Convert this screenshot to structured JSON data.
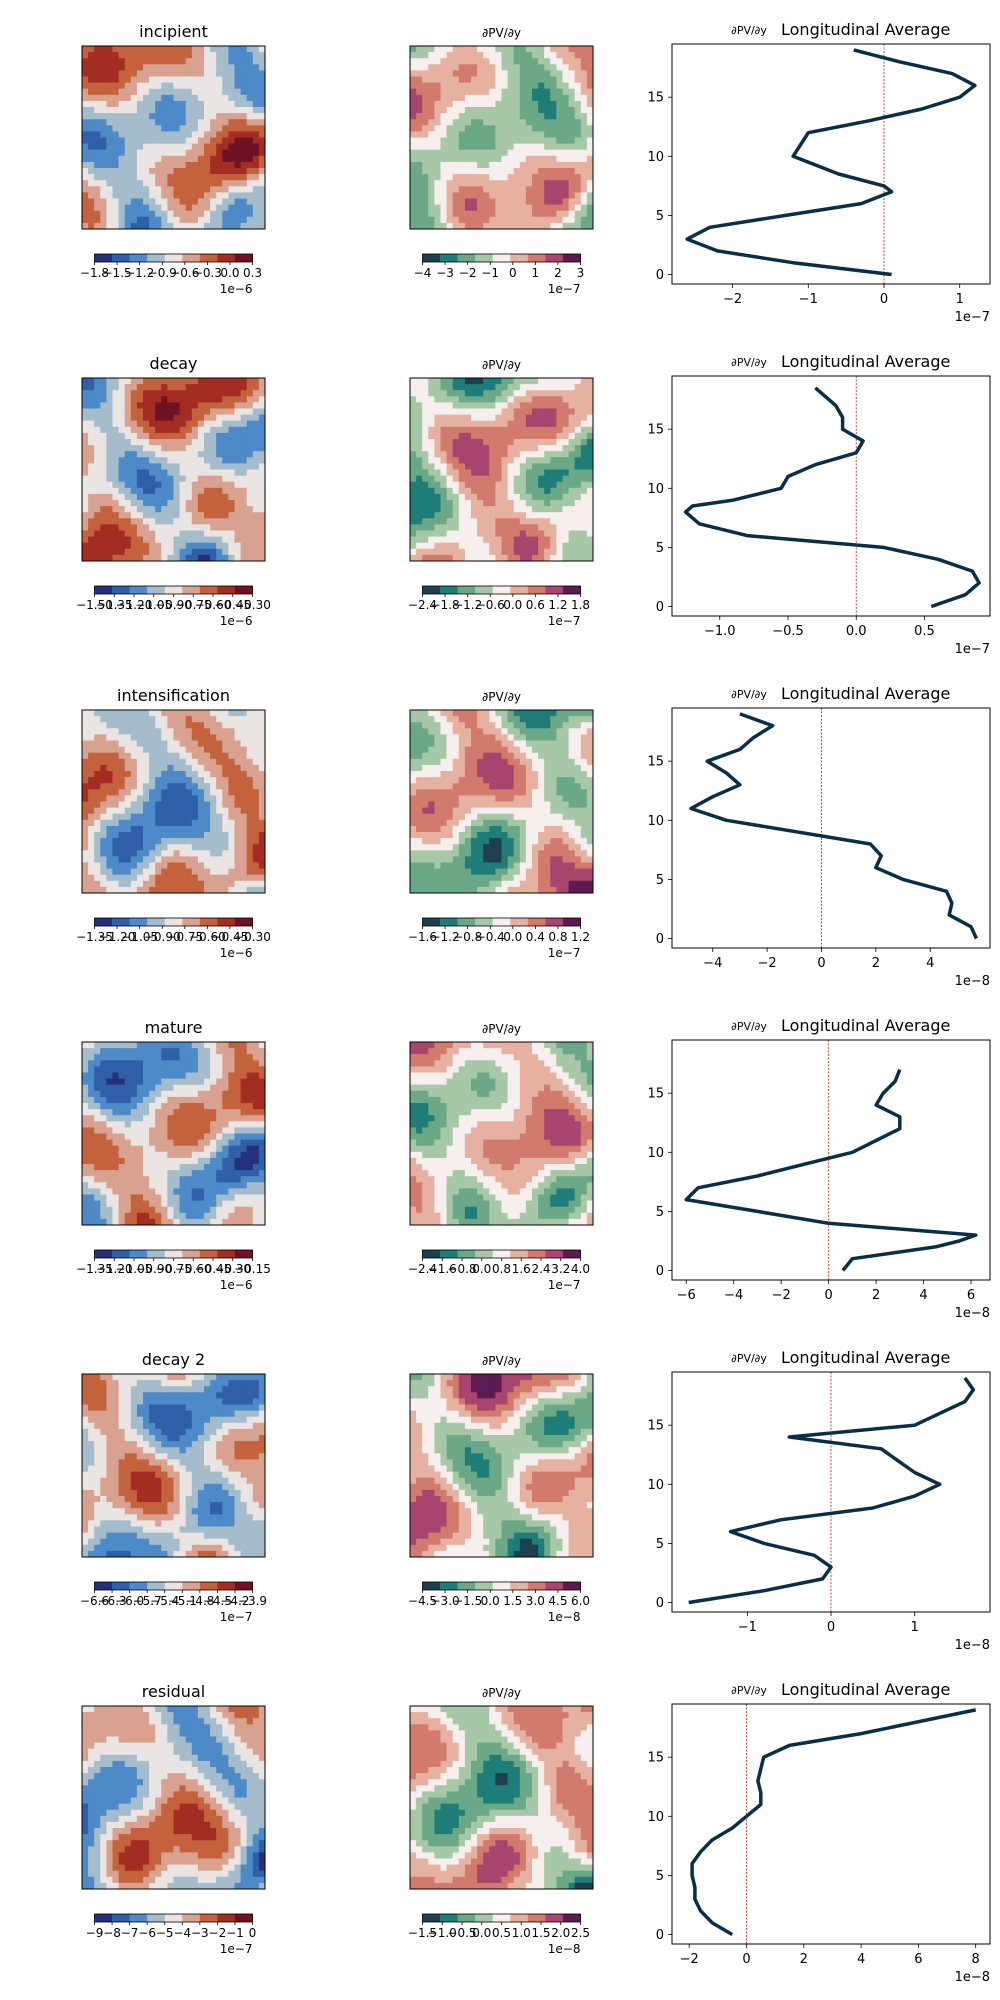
{
  "labels": {
    "dpv_dy_title": "∂PV/∂y",
    "long_avg_suffix": "Longitudinal Average"
  },
  "colors": {
    "profile_line": "#0a2e45",
    "zero_line": "#c0392b",
    "div_map": [
      "#24317a",
      "#2f5fa8",
      "#4d8ac7",
      "#a4bccb",
      "#eae4e3",
      "#d9a290",
      "#c4623d",
      "#a32d22",
      "#6e1224"
    ],
    "grad_map": [
      "#1e3f50",
      "#1f7d78",
      "#6ba888",
      "#a7c8a6",
      "#f6efee",
      "#e6b1a1",
      "#d27a6c",
      "#a8446d",
      "#5c1b52"
    ]
  },
  "chart_data": [
    {
      "type": "heatmap",
      "row": 0,
      "title": "incipient",
      "colorbar": {
        "ticks": [
          "−1.8",
          "−1.5",
          "−1.2",
          "−0.9",
          "−0.6",
          "−0.3",
          "0.0",
          "0.3"
        ],
        "exponent": "1e−6"
      }
    },
    {
      "type": "heatmap",
      "row": 0,
      "title": "∂PV/∂y",
      "colorbar": {
        "ticks": [
          "−4",
          "−3",
          "−2",
          "−1",
          "0",
          "1",
          "2",
          "3"
        ],
        "exponent": "1e−7"
      }
    },
    {
      "type": "line",
      "row": 0,
      "title": "∂PV/∂y Longitudinal Average",
      "x": [
        0.1,
        -1.2,
        -2.2,
        -2.6,
        -2.3,
        -1.3,
        -0.3,
        0.1,
        0.0,
        -0.6,
        -1.2,
        -1.1,
        -1.0,
        -0.2,
        0.5,
        1.0,
        1.2,
        0.9,
        0.2,
        -0.4
      ],
      "y": [
        0,
        1,
        2,
        3,
        4,
        5,
        6,
        7,
        7.5,
        8.5,
        10,
        11,
        12,
        13,
        14,
        15,
        16,
        17,
        18,
        19
      ],
      "xlim": [
        -2.8,
        1.4
      ],
      "ylim": [
        -0.8,
        19.5
      ],
      "xticks": [
        -2,
        -1,
        0,
        1
      ],
      "xtick_labels": [
        "−2",
        "−1",
        "0",
        "1"
      ],
      "yticks": [
        0,
        5,
        10,
        15
      ],
      "exponent": "1e−7"
    },
    {
      "type": "heatmap",
      "row": 1,
      "title": "decay",
      "colorbar": {
        "ticks": [
          "−1.50",
          "−1.35",
          "−1.20",
          "−1.05",
          "−0.90",
          "−0.75",
          "−0.60",
          "−0.45",
          "−0.30"
        ],
        "exponent": "1e−6"
      }
    },
    {
      "type": "heatmap",
      "row": 1,
      "title": "∂PV/∂y",
      "colorbar": {
        "ticks": [
          "−2.4",
          "−1.8",
          "−1.2",
          "−0.6",
          "0.0",
          "0.6",
          "1.2",
          "1.8"
        ],
        "exponent": "1e−7"
      }
    },
    {
      "type": "line",
      "row": 1,
      "title": "∂PV/∂y Longitudinal Average",
      "x": [
        0.55,
        0.8,
        0.9,
        0.85,
        0.6,
        0.2,
        -0.3,
        -0.8,
        -1.15,
        -1.25,
        -1.2,
        -0.9,
        -0.55,
        -0.5,
        -0.3,
        0.0,
        0.05,
        -0.1,
        -0.1,
        -0.15,
        -0.3
      ],
      "y": [
        0,
        1,
        2,
        3,
        4,
        5,
        5.5,
        6,
        7,
        8,
        8.5,
        9,
        10,
        11,
        12,
        13,
        14,
        15,
        16,
        17,
        18.5
      ],
      "xlim": [
        -1.35,
        0.98
      ],
      "ylim": [
        -0.8,
        19.5
      ],
      "xticks": [
        -1.0,
        -0.5,
        0.0,
        0.5
      ],
      "xtick_labels": [
        "−1.0",
        "−0.5",
        "0.0",
        "0.5"
      ],
      "yticks": [
        0,
        5,
        10,
        15
      ],
      "exponent": "1e−7"
    },
    {
      "type": "heatmap",
      "row": 2,
      "title": "intensification",
      "colorbar": {
        "ticks": [
          "−1.35",
          "−1.20",
          "−1.05",
          "−0.90",
          "−0.75",
          "−0.60",
          "−0.45",
          "−0.30"
        ],
        "exponent": "1e−6"
      }
    },
    {
      "type": "heatmap",
      "row": 2,
      "title": "∂PV/∂y",
      "colorbar": {
        "ticks": [
          "−1.6",
          "−1.2",
          "−0.8",
          "−0.4",
          "0.0",
          "0.4",
          "0.8",
          "1.2"
        ],
        "exponent": "1e−7"
      }
    },
    {
      "type": "line",
      "row": 2,
      "title": "∂PV/∂y Longitudinal Average",
      "x": [
        5.7,
        5.5,
        4.7,
        4.8,
        4.6,
        3.0,
        2.0,
        2.2,
        1.8,
        -3.5,
        -4.8,
        -4.0,
        -3.0,
        -3.5,
        -4.2,
        -3.0,
        -2.5,
        -1.8,
        -3.0
      ],
      "y": [
        0,
        1,
        2,
        3,
        4,
        5,
        6,
        7,
        8,
        10,
        11,
        12,
        13,
        14,
        15,
        16,
        17,
        18,
        19
      ],
      "xlim": [
        -5.5,
        6.2
      ],
      "ylim": [
        -0.8,
        19.5
      ],
      "xticks": [
        -4,
        -2,
        0,
        2,
        4
      ],
      "xtick_labels": [
        "−4",
        "−2",
        "0",
        "2",
        "4"
      ],
      "yticks": [
        0,
        5,
        10,
        15
      ],
      "exponent": "1e−8"
    },
    {
      "type": "heatmap",
      "row": 3,
      "title": "mature",
      "colorbar": {
        "ticks": [
          "−1.35",
          "−1.20",
          "−1.05",
          "−0.90",
          "−0.75",
          "−0.60",
          "−0.45",
          "−0.30",
          "−0.15"
        ],
        "exponent": "1e−6"
      }
    },
    {
      "type": "heatmap",
      "row": 3,
      "title": "∂PV/∂y",
      "colorbar": {
        "ticks": [
          "−2.4",
          "−1.6",
          "−0.8",
          "0.0",
          "0.8",
          "1.6",
          "2.4",
          "3.2",
          "4.0"
        ],
        "exponent": "1e−7"
      }
    },
    {
      "type": "line",
      "row": 3,
      "title": "∂PV/∂y Longitudinal Average",
      "x": [
        0.6,
        1.0,
        4.5,
        5.5,
        6.2,
        0.0,
        -3.0,
        -6.0,
        -5.5,
        -3.0,
        -1.0,
        1.0,
        2.0,
        3.0,
        3.0,
        2.0,
        2.3,
        2.8,
        3.0
      ],
      "y": [
        0,
        1,
        2,
        2.5,
        3,
        4,
        5,
        6,
        7,
        8,
        9,
        10,
        11,
        12,
        13,
        14,
        15,
        16,
        17
      ],
      "xlim": [
        -6.6,
        6.8
      ],
      "ylim": [
        -0.8,
        19.5
      ],
      "xticks": [
        -6,
        -4,
        -2,
        0,
        2,
        4,
        6
      ],
      "xtick_labels": [
        "−6",
        "−4",
        "−2",
        "0",
        "2",
        "4",
        "6"
      ],
      "yticks": [
        0,
        5,
        10,
        15
      ],
      "exponent": "1e−8"
    },
    {
      "type": "heatmap",
      "row": 4,
      "title": "decay 2",
      "colorbar": {
        "ticks": [
          "−6.6",
          "−6.3",
          "−6.0",
          "−5.7",
          "−5.4",
          "−5.1",
          "−4.8",
          "−4.5",
          "−4.2",
          "−3.9"
        ],
        "exponent": "1e−7"
      }
    },
    {
      "type": "heatmap",
      "row": 4,
      "title": "∂PV/∂y",
      "colorbar": {
        "ticks": [
          "−4.5",
          "−3.0",
          "−1.5",
          "0.0",
          "1.5",
          "3.0",
          "4.5",
          "6.0"
        ],
        "exponent": "1e−8"
      }
    },
    {
      "type": "line",
      "row": 4,
      "title": "∂PV/∂y Longitudinal Average",
      "x": [
        -1.7,
        -0.8,
        -0.1,
        0.0,
        -0.2,
        -0.8,
        -1.2,
        -0.6,
        0.5,
        1.0,
        1.3,
        1.0,
        0.8,
        0.6,
        -0.5,
        1.0,
        1.6,
        1.7,
        1.6
      ],
      "y": [
        0,
        1,
        2,
        3,
        4,
        5,
        6,
        7,
        8,
        9,
        10,
        11,
        12,
        13,
        14,
        15,
        17,
        18,
        19
      ],
      "xlim": [
        -1.9,
        1.9
      ],
      "ylim": [
        -0.8,
        19.5
      ],
      "xticks": [
        -1,
        0,
        1
      ],
      "xtick_labels": [
        "−1",
        "0",
        "1"
      ],
      "yticks": [
        0,
        5,
        10,
        15
      ],
      "exponent": "1e−8"
    },
    {
      "type": "heatmap",
      "row": 5,
      "title": "residual",
      "colorbar": {
        "ticks": [
          "−9",
          "−8",
          "−7",
          "−6",
          "−5",
          "−4",
          "−3",
          "−2",
          "−1",
          "0"
        ],
        "exponent": "1e−7"
      }
    },
    {
      "type": "heatmap",
      "row": 5,
      "title": "∂PV/∂y",
      "colorbar": {
        "ticks": [
          "−1.5",
          "−1.0",
          "−0.5",
          "0.0",
          "0.5",
          "1.0",
          "1.5",
          "2.0",
          "2.5"
        ],
        "exponent": "1e−8"
      }
    },
    {
      "type": "line",
      "row": 5,
      "title": "∂PV/∂y Longitudinal Average",
      "x": [
        -0.5,
        -1.2,
        -1.6,
        -1.8,
        -1.8,
        -1.9,
        -1.9,
        -1.6,
        -1.2,
        -0.5,
        0.0,
        0.5,
        0.5,
        0.4,
        0.5,
        0.6,
        1.5,
        4.0,
        8.0
      ],
      "y": [
        0,
        1,
        2,
        3,
        4,
        5,
        6,
        7,
        8,
        9,
        10,
        11,
        12,
        13,
        14,
        15,
        16,
        17,
        19
      ],
      "xlim": [
        -2.6,
        8.5
      ],
      "ylim": [
        -0.8,
        19.5
      ],
      "xticks": [
        -2,
        0,
        2,
        4,
        6,
        8
      ],
      "xtick_labels": [
        "−2",
        "0",
        "2",
        "4",
        "6",
        "8"
      ],
      "yticks": [
        0,
        5,
        10,
        15
      ],
      "exponent": "1e−8"
    }
  ]
}
